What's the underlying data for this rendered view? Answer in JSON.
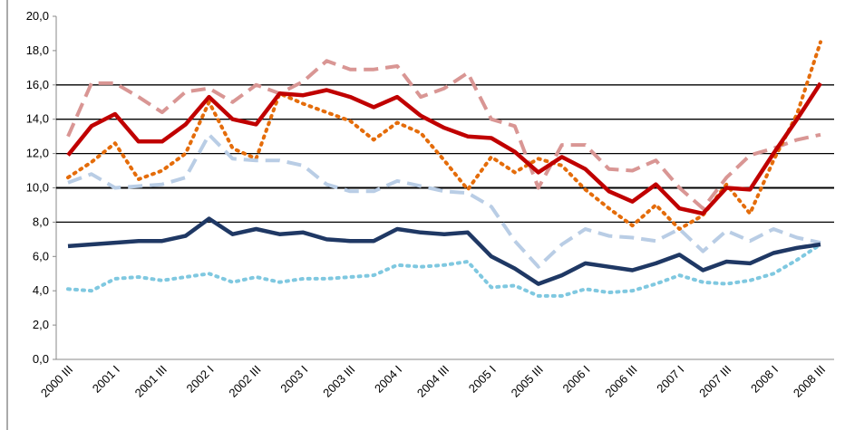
{
  "chart_data": {
    "type": "line",
    "categories": [
      "2000 III",
      null,
      "2001 I",
      null,
      "2001 III",
      null,
      "2002 I",
      null,
      "2002 III",
      null,
      "2003 I",
      null,
      "2003 III",
      null,
      "2004 I",
      null,
      "2004 III",
      null,
      "2005 I",
      null,
      "2005 III",
      null,
      "2006 I",
      null,
      "2006 III",
      null,
      "2007 I",
      null,
      "2007 III",
      null,
      "2008 I",
      null,
      "2008 III"
    ],
    "series": [
      {
        "color": "#d99694",
        "style": "dashed",
        "values": [
          13.0,
          16.1,
          16.1,
          15.3,
          14.4,
          15.6,
          15.8,
          15.0,
          16.0,
          15.5,
          16.2,
          17.4,
          16.9,
          16.9,
          17.1,
          15.3,
          15.8,
          16.7,
          14.0,
          13.6,
          10.0,
          12.5,
          12.5,
          11.1,
          11.0,
          11.6,
          10.0,
          8.8,
          10.6,
          11.9,
          12.3,
          12.8,
          13.1
        ]
      },
      {
        "color": "#e46c0a",
        "style": "dotted",
        "values": [
          10.6,
          11.5,
          12.6,
          10.5,
          11.0,
          12.0,
          15.0,
          12.3,
          11.7,
          15.5,
          14.9,
          14.4,
          13.9,
          12.8,
          13.8,
          13.2,
          11.6,
          9.9,
          11.8,
          10.9,
          11.7,
          11.3,
          9.9,
          8.8,
          7.8,
          9.0,
          7.6,
          8.4,
          10.2,
          8.5,
          11.6,
          14.3,
          18.5
        ]
      },
      {
        "color": "#c00000",
        "style": "solid",
        "values": [
          11.9,
          13.6,
          14.3,
          12.7,
          12.7,
          13.7,
          15.3,
          14.0,
          13.7,
          15.5,
          15.4,
          15.7,
          15.3,
          14.7,
          15.3,
          14.2,
          13.5,
          13.0,
          12.9,
          12.1,
          10.9,
          11.8,
          11.1,
          9.8,
          9.2,
          10.2,
          8.8,
          8.5,
          10.0,
          9.9,
          12.0,
          14.0,
          16.1
        ]
      },
      {
        "color": "#b9cde5",
        "style": "dashed",
        "values": [
          10.3,
          10.8,
          10.0,
          10.1,
          10.2,
          10.6,
          13.1,
          11.7,
          11.6,
          11.6,
          11.3,
          10.2,
          9.8,
          9.8,
          10.4,
          10.1,
          9.8,
          9.7,
          8.9,
          6.9,
          5.4,
          6.7,
          7.6,
          7.2,
          7.1,
          6.9,
          7.6,
          6.3,
          7.5,
          6.9,
          7.6,
          7.1,
          6.8
        ]
      },
      {
        "color": "#7fc8e0",
        "style": "dotted",
        "values": [
          4.1,
          4.0,
          4.7,
          4.8,
          4.6,
          4.8,
          5.0,
          4.5,
          4.8,
          4.5,
          4.7,
          4.7,
          4.8,
          4.9,
          5.5,
          5.4,
          5.5,
          5.7,
          4.2,
          4.3,
          3.7,
          3.7,
          4.1,
          3.9,
          4.0,
          4.4,
          4.9,
          4.5,
          4.4,
          4.6,
          5.0,
          5.8,
          6.7
        ]
      },
      {
        "color": "#1f3864",
        "style": "solid",
        "values": [
          6.6,
          6.7,
          6.8,
          6.9,
          6.9,
          7.2,
          8.2,
          7.3,
          7.6,
          7.3,
          7.4,
          7.0,
          6.9,
          6.9,
          7.6,
          7.4,
          7.3,
          7.4,
          6.0,
          5.3,
          4.4,
          4.9,
          5.6,
          5.4,
          5.2,
          5.6,
          6.1,
          5.2,
          5.7,
          5.6,
          6.2,
          6.5,
          6.7
        ]
      }
    ],
    "ylim": [
      0,
      20
    ],
    "yticks": [
      {
        "value": 0,
        "label": "0,0"
      },
      {
        "value": 2,
        "label": "2,0"
      },
      {
        "value": 4,
        "label": "4,0"
      },
      {
        "value": 6,
        "label": "6,0"
      },
      {
        "value": 8,
        "label": "8,0"
      },
      {
        "value": 10,
        "label": "10,0"
      },
      {
        "value": 12,
        "label": "12,0"
      },
      {
        "value": 14,
        "label": "14,0"
      },
      {
        "value": 16,
        "label": "16,0"
      },
      {
        "value": 18,
        "label": "18,0"
      },
      {
        "value": 20,
        "label": "20,0"
      }
    ],
    "grid_lines": [
      8,
      10,
      12,
      14,
      16
    ]
  }
}
